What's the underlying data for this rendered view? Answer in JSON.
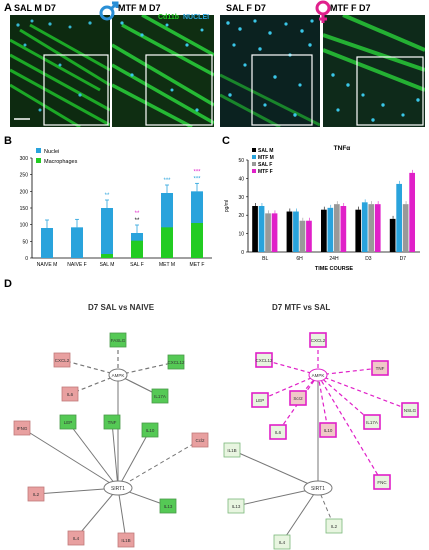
{
  "panel_labels": {
    "a": "A",
    "b": "B",
    "c": "C",
    "d": "D"
  },
  "micrographs": [
    {
      "label": "SAL M D7"
    },
    {
      "label": "MTF M D7"
    },
    {
      "label": "SAL F D7"
    },
    {
      "label": "MTF F D7"
    }
  ],
  "stain": {
    "cd11b": "Cd11b",
    "nuclei": "NUCLEI"
  },
  "colors": {
    "green": "#22cc22",
    "blue": "#29a3dc",
    "gray": "#999999",
    "magenta": "#e020c8",
    "male": "#2a8fd6",
    "female": "#e0208c",
    "up_green": "#55c955",
    "down_red": "#e8a0a0"
  },
  "chart_data": [
    {
      "type": "bar",
      "title": "",
      "stacked": true,
      "categories": [
        "NAIVE M",
        "NAIVE F",
        "SAL M",
        "SAL F",
        "MET M",
        "MET F"
      ],
      "series": [
        {
          "name": "Nuclei",
          "values": [
            90,
            92,
            150,
            75,
            195,
            200
          ]
        },
        {
          "name": "Macrophages",
          "values": [
            0,
            0,
            12,
            52,
            92,
            105
          ]
        }
      ],
      "ylim": [
        0,
        300
      ],
      "yticks": [
        "0",
        "50",
        "100",
        "150",
        "200",
        "250",
        "300"
      ]
    },
    {
      "type": "bar",
      "title": "TNFα",
      "ylabel": "pg/ml",
      "xlabel": "TIME COURSE",
      "categories": [
        "BL",
        "6H",
        "24H",
        "D3",
        "D7"
      ],
      "series": [
        {
          "name": "SAL M",
          "values": [
            25,
            22,
            23,
            23,
            18
          ]
        },
        {
          "name": "MTF M",
          "values": [
            25,
            22,
            24,
            27,
            37
          ]
        },
        {
          "name": "SAL F",
          "values": [
            21,
            17,
            26,
            26,
            26
          ]
        },
        {
          "name": "MTF F",
          "values": [
            21,
            17,
            25,
            26,
            43
          ]
        }
      ],
      "ylim": [
        0,
        50
      ],
      "yticks": [
        "0",
        "10",
        "20",
        "30",
        "40",
        "50"
      ]
    }
  ],
  "significance_b": {
    "salm": "**",
    "salf_blue": "**",
    "salf_black": "**",
    "salf_mag": "**",
    "metm": "***",
    "metf": "***"
  },
  "networks": {
    "left": {
      "title": "D7 SAL vs NAIVE",
      "hub1": "AMPK",
      "hub2": "SIRT1",
      "nodes": [
        "FASLG",
        "CXCL2",
        "CXCL12",
        "IL6",
        "IL17A",
        "IFNG",
        "LEP",
        "TNF",
        "IL10",
        "Ccl2",
        "IL2",
        "IL13",
        "IL4",
        "IL1B"
      ]
    },
    "right": {
      "title": "D7 MTF vs SAL",
      "hub1": "AMPK",
      "hub2": "SIRT1",
      "nodes": [
        "CXCL2",
        "CXCL12",
        "TNF",
        "LEP",
        "Scr2",
        "IL6",
        "IL10",
        "IL17A",
        "NSLG",
        "FNC",
        "IL1B",
        "IL13",
        "IL2",
        "IL4"
      ]
    }
  }
}
